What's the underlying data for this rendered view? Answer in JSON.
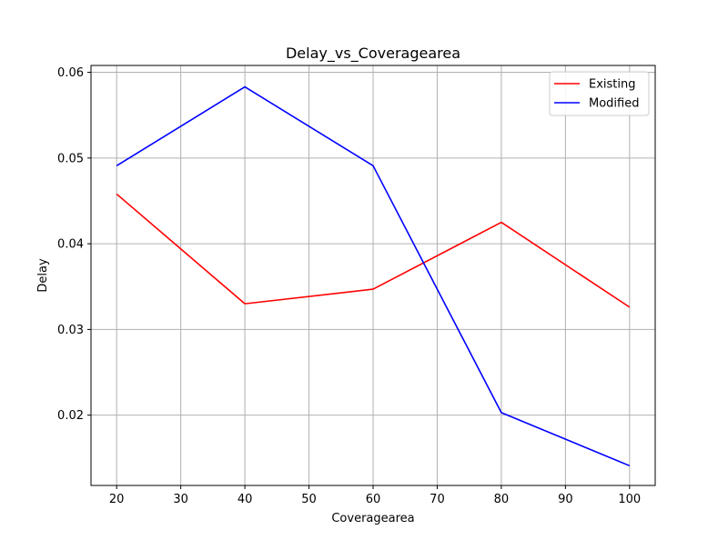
{
  "chart_data": {
    "type": "line",
    "title": "Delay_vs_Coveragearea",
    "xlabel": "Coveragearea",
    "ylabel": "Delay",
    "x": [
      20,
      40,
      60,
      80,
      100
    ],
    "xlim": [
      16,
      104
    ],
    "ylim": [
      0.0118,
      0.0608
    ],
    "xticks": [
      20,
      30,
      40,
      50,
      60,
      70,
      80,
      90,
      100
    ],
    "xtick_labels": [
      "20",
      "30",
      "40",
      "50",
      "60",
      "70",
      "80",
      "90",
      "100"
    ],
    "yticks": [
      0.02,
      0.03,
      0.04,
      0.05,
      0.06
    ],
    "ytick_labels": [
      "0.02",
      "0.03",
      "0.04",
      "0.05",
      "0.06"
    ],
    "grid": true,
    "legend_position": "top-right",
    "series": [
      {
        "name": "Existing",
        "color": "#ff0000",
        "values": [
          0.0458,
          0.033,
          0.0347,
          0.0425,
          0.0326
        ]
      },
      {
        "name": "Modified",
        "color": "#0000ff",
        "values": [
          0.0491,
          0.0583,
          0.0491,
          0.0203,
          0.0141
        ]
      }
    ]
  }
}
